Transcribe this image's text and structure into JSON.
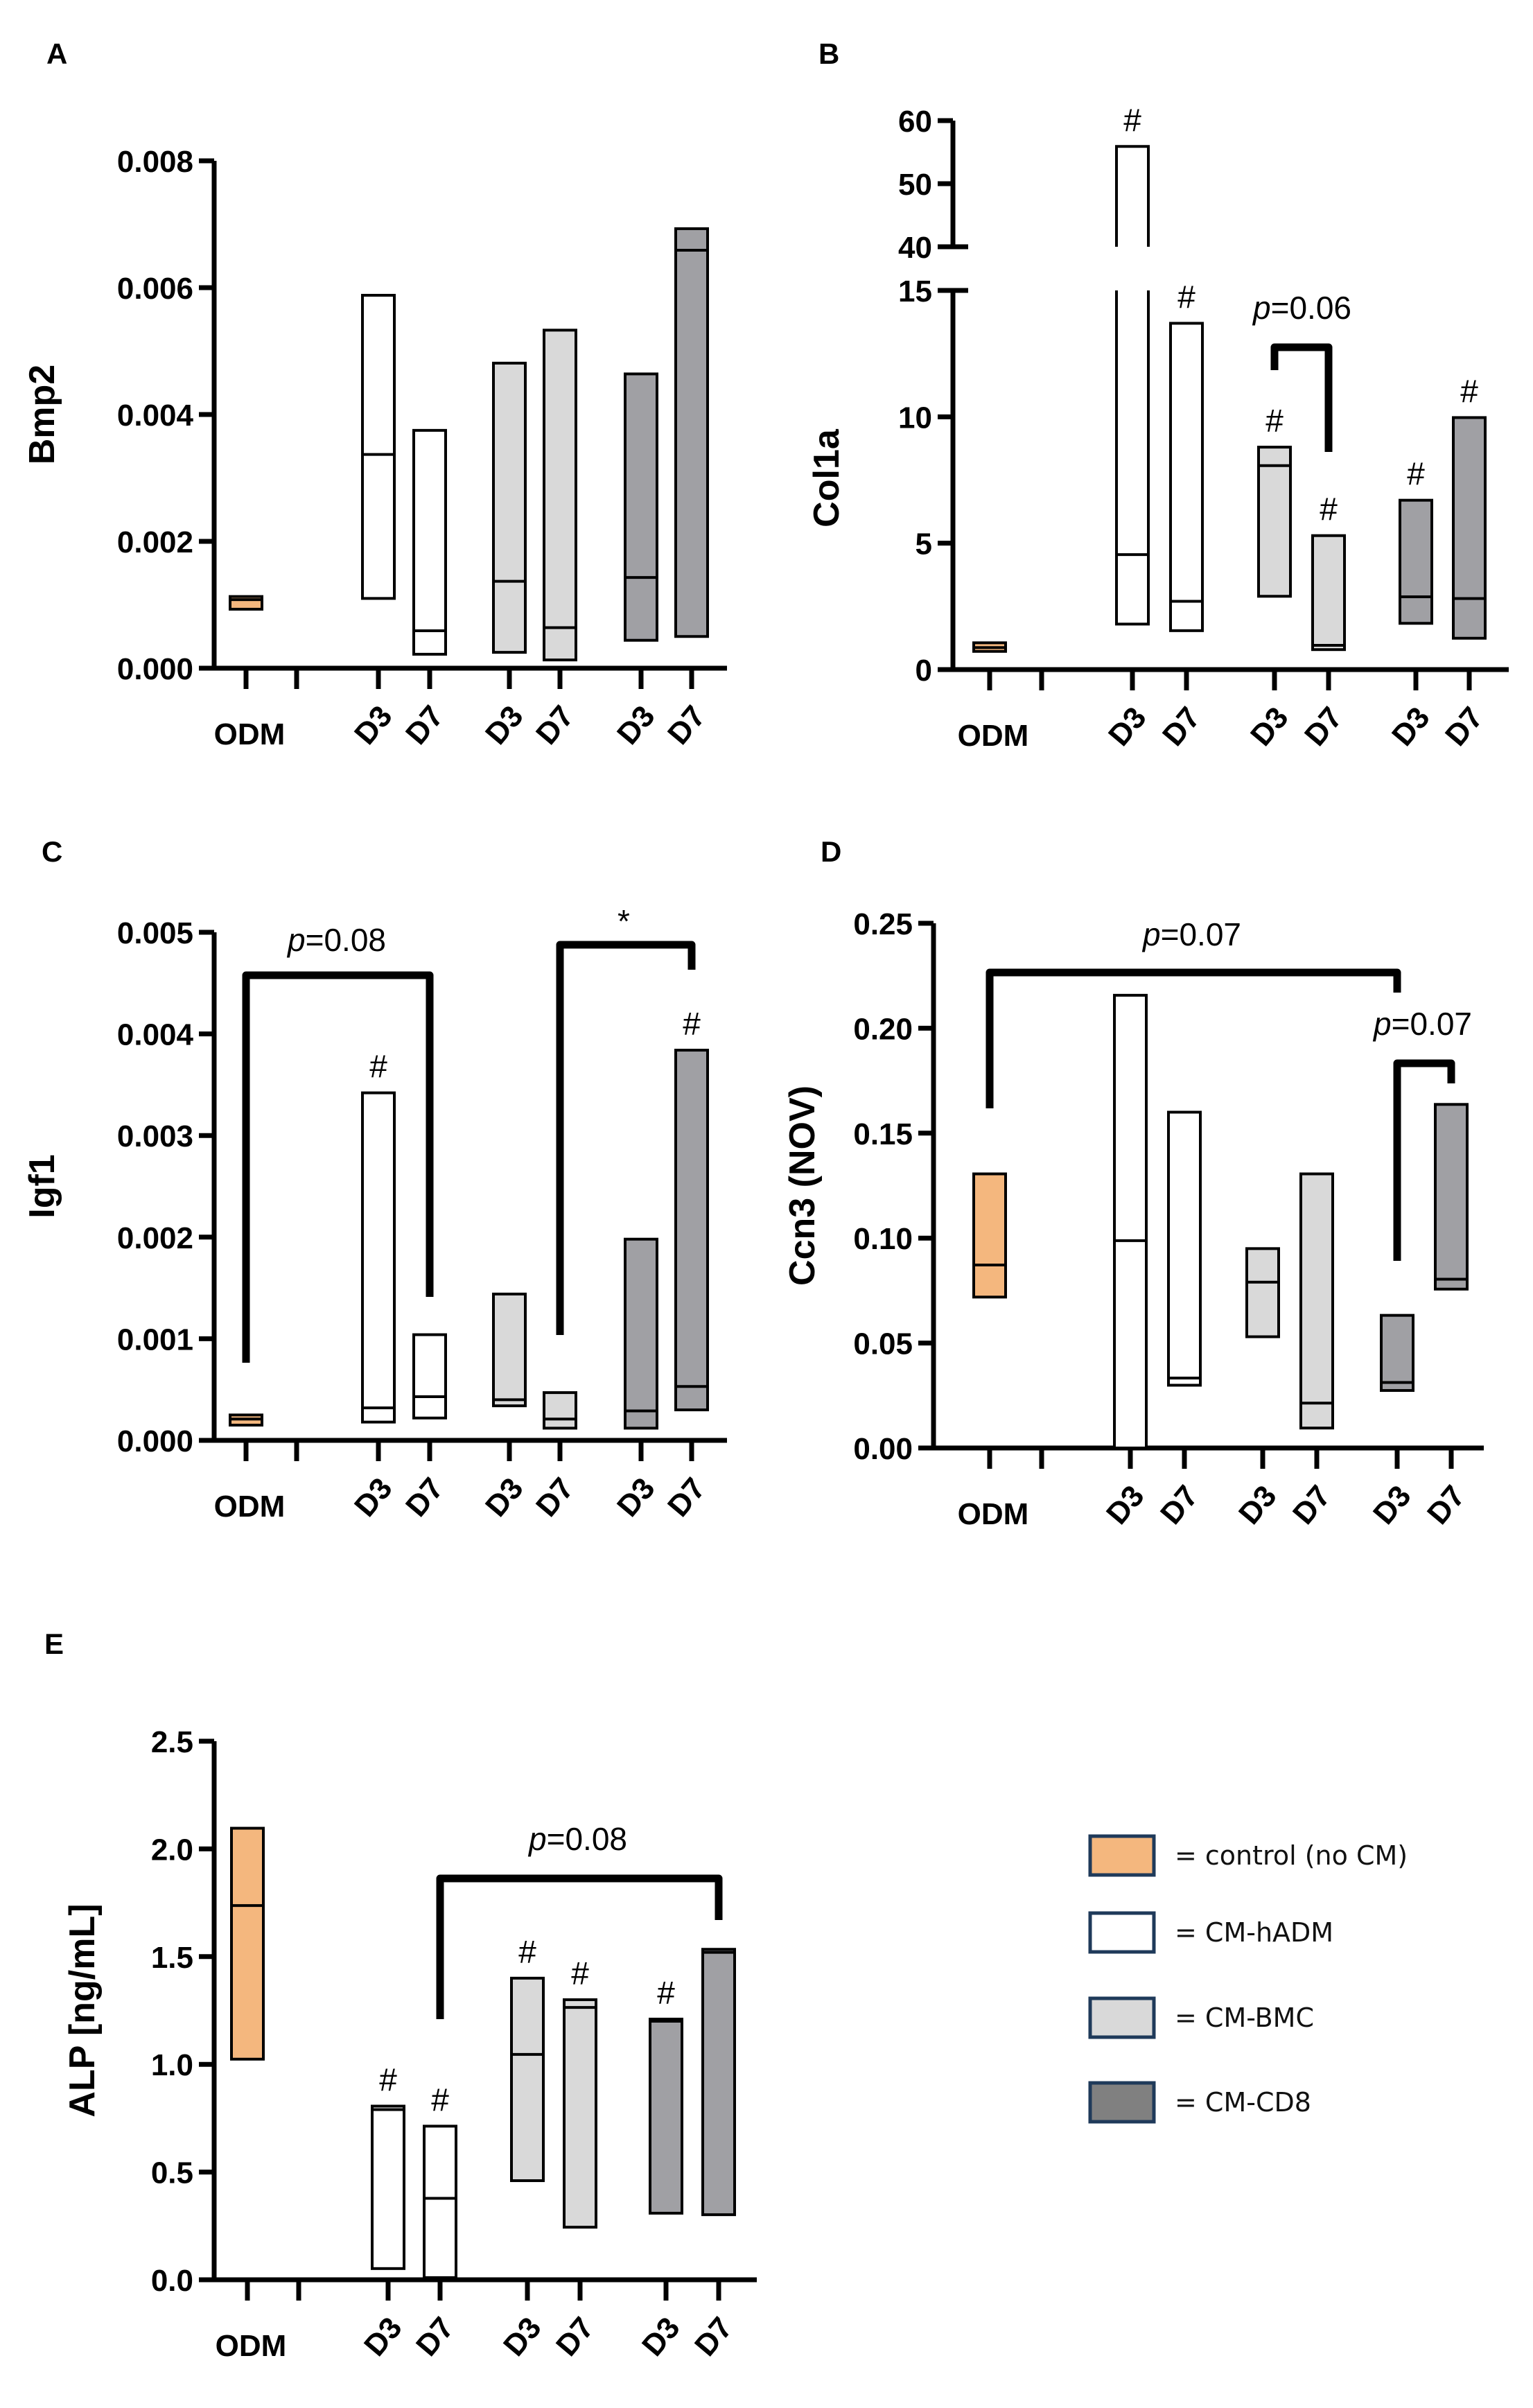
{
  "colors": {
    "control": "#f4b77e",
    "hADM": "#ffffff",
    "BMC": "#d9d9d9",
    "CD8": "#a0a0a4",
    "legend_CD8": "#808080",
    "legend_border": "#1f3a5a"
  },
  "legend": [
    {
      "group": "control",
      "label": "= control (no CM)"
    },
    {
      "group": "hADM",
      "label": "= CM-hADM"
    },
    {
      "group": "BMC",
      "label": "= CM-BMC"
    },
    {
      "group": "CD8",
      "label": "= CM-CD8"
    }
  ],
  "chart_data": [
    {
      "panel": "A",
      "type": "box",
      "ylabel": "Bmp2",
      "yticks": [
        "0.000",
        "0.002",
        "0.004",
        "0.006",
        "0.008"
      ],
      "ylim": [
        0,
        0.008
      ],
      "xlabels": [
        "ODM",
        "D3",
        "D7",
        "D3",
        "D7",
        "D3",
        "D7"
      ],
      "boxes": [
        {
          "group": "control",
          "day": "ODM",
          "min": 0.00093,
          "median": 0.00108,
          "max": 0.00113,
          "hash": false
        },
        {
          "group": "hADM",
          "day": "D3",
          "min": 0.0011,
          "median": 0.00337,
          "max": 0.00588,
          "hash": false
        },
        {
          "group": "hADM",
          "day": "D7",
          "min": 0.00022,
          "median": 0.00059,
          "max": 0.00375,
          "hash": false
        },
        {
          "group": "BMC",
          "day": "D3",
          "min": 0.00025,
          "median": 0.00137,
          "max": 0.00481,
          "hash": false
        },
        {
          "group": "BMC",
          "day": "D7",
          "min": 0.00013,
          "median": 0.00064,
          "max": 0.00533,
          "hash": false
        },
        {
          "group": "CD8",
          "day": "D3",
          "min": 0.00044,
          "median": 0.00143,
          "max": 0.00464,
          "hash": false
        },
        {
          "group": "CD8",
          "day": "D7",
          "min": 0.0005,
          "median": 0.00659,
          "max": 0.00693,
          "hash": false
        }
      ],
      "brackets": []
    },
    {
      "panel": "B",
      "type": "box",
      "ylabel": "Col1a",
      "yticks": [
        "0",
        "5",
        "10",
        "15",
        "40",
        "50",
        "60"
      ],
      "ylim": [
        0,
        60
      ],
      "axis_break": [
        15,
        40
      ],
      "xlabels": [
        "ODM",
        "D3",
        "D7",
        "D3",
        "D7",
        "D3",
        "D7"
      ],
      "boxes": [
        {
          "group": "control",
          "day": "ODM",
          "min": 0.72,
          "median": 0.87,
          "max": 1.06,
          "hash": false
        },
        {
          "group": "hADM",
          "day": "D3",
          "min": 1.8,
          "median": 4.55,
          "max": 55.9,
          "hash": true
        },
        {
          "group": "hADM",
          "day": "D7",
          "min": 1.54,
          "median": 2.7,
          "max": 13.7,
          "hash": true
        },
        {
          "group": "BMC",
          "day": "D3",
          "min": 2.9,
          "median": 8.07,
          "max": 8.8,
          "hash": true
        },
        {
          "group": "BMC",
          "day": "D7",
          "min": 0.79,
          "median": 0.96,
          "max": 5.3,
          "hash": true
        },
        {
          "group": "CD8",
          "day": "D3",
          "min": 1.83,
          "median": 2.88,
          "max": 6.7,
          "hash": true
        },
        {
          "group": "CD8",
          "day": "D7",
          "min": 1.24,
          "median": 2.81,
          "max": 9.97,
          "hash": true
        }
      ],
      "brackets": [
        {
          "from": 3,
          "to": 4,
          "label_p": "p",
          "label_rest": "=0.06"
        }
      ]
    },
    {
      "panel": "C",
      "type": "box",
      "ylabel": "Igf1",
      "yticks": [
        "0.000",
        "0.001",
        "0.002",
        "0.003",
        "0.004",
        "0.005"
      ],
      "ylim": [
        0,
        0.005
      ],
      "xlabels": [
        "ODM",
        "D3",
        "D7",
        "D3",
        "D7",
        "D3",
        "D7"
      ],
      "boxes": [
        {
          "group": "control",
          "day": "ODM",
          "min": 0.00015,
          "median": 0.00021,
          "max": 0.00025,
          "hash": false
        },
        {
          "group": "hADM",
          "day": "D3",
          "min": 0.00018,
          "median": 0.00032,
          "max": 0.00342,
          "hash": true
        },
        {
          "group": "hADM",
          "day": "D7",
          "min": 0.00022,
          "median": 0.00043,
          "max": 0.00104,
          "hash": false
        },
        {
          "group": "BMC",
          "day": "D3",
          "min": 0.00034,
          "median": 0.0004,
          "max": 0.00144,
          "hash": false
        },
        {
          "group": "BMC",
          "day": "D7",
          "min": 0.00012,
          "median": 0.00021,
          "max": 0.00047,
          "hash": false
        },
        {
          "group": "CD8",
          "day": "D3",
          "min": 0.00012,
          "median": 0.00029,
          "max": 0.00198,
          "hash": false
        },
        {
          "group": "CD8",
          "day": "D7",
          "min": 0.0003,
          "median": 0.00053,
          "max": 0.00384,
          "hash": true
        }
      ],
      "brackets": [
        {
          "from": 0,
          "to": 2,
          "label_p": "p",
          "label_rest": "=0.08"
        },
        {
          "from": 4,
          "to": 6,
          "label_p": "",
          "label_rest": "*"
        }
      ]
    },
    {
      "panel": "D",
      "type": "box",
      "ylabel": "Ccn3 (NOV)",
      "yticks": [
        "0.00",
        "0.05",
        "0.10",
        "0.15",
        "0.20",
        "0.25"
      ],
      "ylim": [
        0,
        0.25
      ],
      "xlabels": [
        "ODM",
        "D3",
        "D7",
        "D3",
        "D7",
        "D3",
        "D7"
      ],
      "boxes": [
        {
          "group": "control",
          "day": "ODM",
          "min": 0.0719,
          "median": 0.0872,
          "max": 0.1306,
          "hash": false
        },
        {
          "group": "hADM",
          "day": "D3",
          "min": 0.0,
          "median": 0.0988,
          "max": 0.2157,
          "hash": false
        },
        {
          "group": "hADM",
          "day": "D7",
          "min": 0.0299,
          "median": 0.0333,
          "max": 0.16,
          "hash": false
        },
        {
          "group": "BMC",
          "day": "D3",
          "min": 0.053,
          "median": 0.079,
          "max": 0.095,
          "hash": false
        },
        {
          "group": "BMC",
          "day": "D7",
          "min": 0.0095,
          "median": 0.0214,
          "max": 0.1306,
          "hash": false
        },
        {
          "group": "CD8",
          "day": "D3",
          "min": 0.0274,
          "median": 0.0312,
          "max": 0.0632,
          "hash": false
        },
        {
          "group": "CD8",
          "day": "D7",
          "min": 0.0757,
          "median": 0.0804,
          "max": 0.1637,
          "hash": false
        }
      ],
      "brackets": [
        {
          "from": 0,
          "to": 5,
          "label_p": "p",
          "label_rest": "=0.07"
        },
        {
          "from": 5,
          "to": 6,
          "label_p": "p",
          "label_rest": "=0.07"
        }
      ]
    },
    {
      "panel": "E",
      "type": "box",
      "ylabel": "ALP [ng/mL]",
      "yticks": [
        "0.0",
        "0.5",
        "1.0",
        "1.5",
        "2.0",
        "2.5"
      ],
      "ylim": [
        0,
        2.5
      ],
      "xlabels": [
        "ODM",
        "D3",
        "D7",
        "D3",
        "D7",
        "D3",
        "D7"
      ],
      "boxes": [
        {
          "group": "control",
          "day": "ODM",
          "min": 1.024,
          "median": 1.737,
          "max": 2.096,
          "hash": false
        },
        {
          "group": "hADM",
          "day": "D3",
          "min": 0.052,
          "median": 0.79,
          "max": 0.806,
          "hash": true
        },
        {
          "group": "hADM",
          "day": "D7",
          "min": 0.01,
          "median": 0.378,
          "max": 0.713,
          "hash": true
        },
        {
          "group": "BMC",
          "day": "D3",
          "min": 0.46,
          "median": 1.046,
          "max": 1.4,
          "hash": true
        },
        {
          "group": "BMC",
          "day": "D7",
          "min": 0.244,
          "median": 1.264,
          "max": 1.3,
          "hash": true
        },
        {
          "group": "CD8",
          "day": "D3",
          "min": 0.309,
          "median": 1.2,
          "max": 1.21,
          "hash": true
        },
        {
          "group": "CD8",
          "day": "D7",
          "min": 0.302,
          "median": 1.52,
          "max": 1.534,
          "hash": false
        }
      ],
      "brackets": [
        {
          "from": 2,
          "to": 6,
          "label_p": "p",
          "label_rest": "=0.08"
        }
      ]
    }
  ]
}
